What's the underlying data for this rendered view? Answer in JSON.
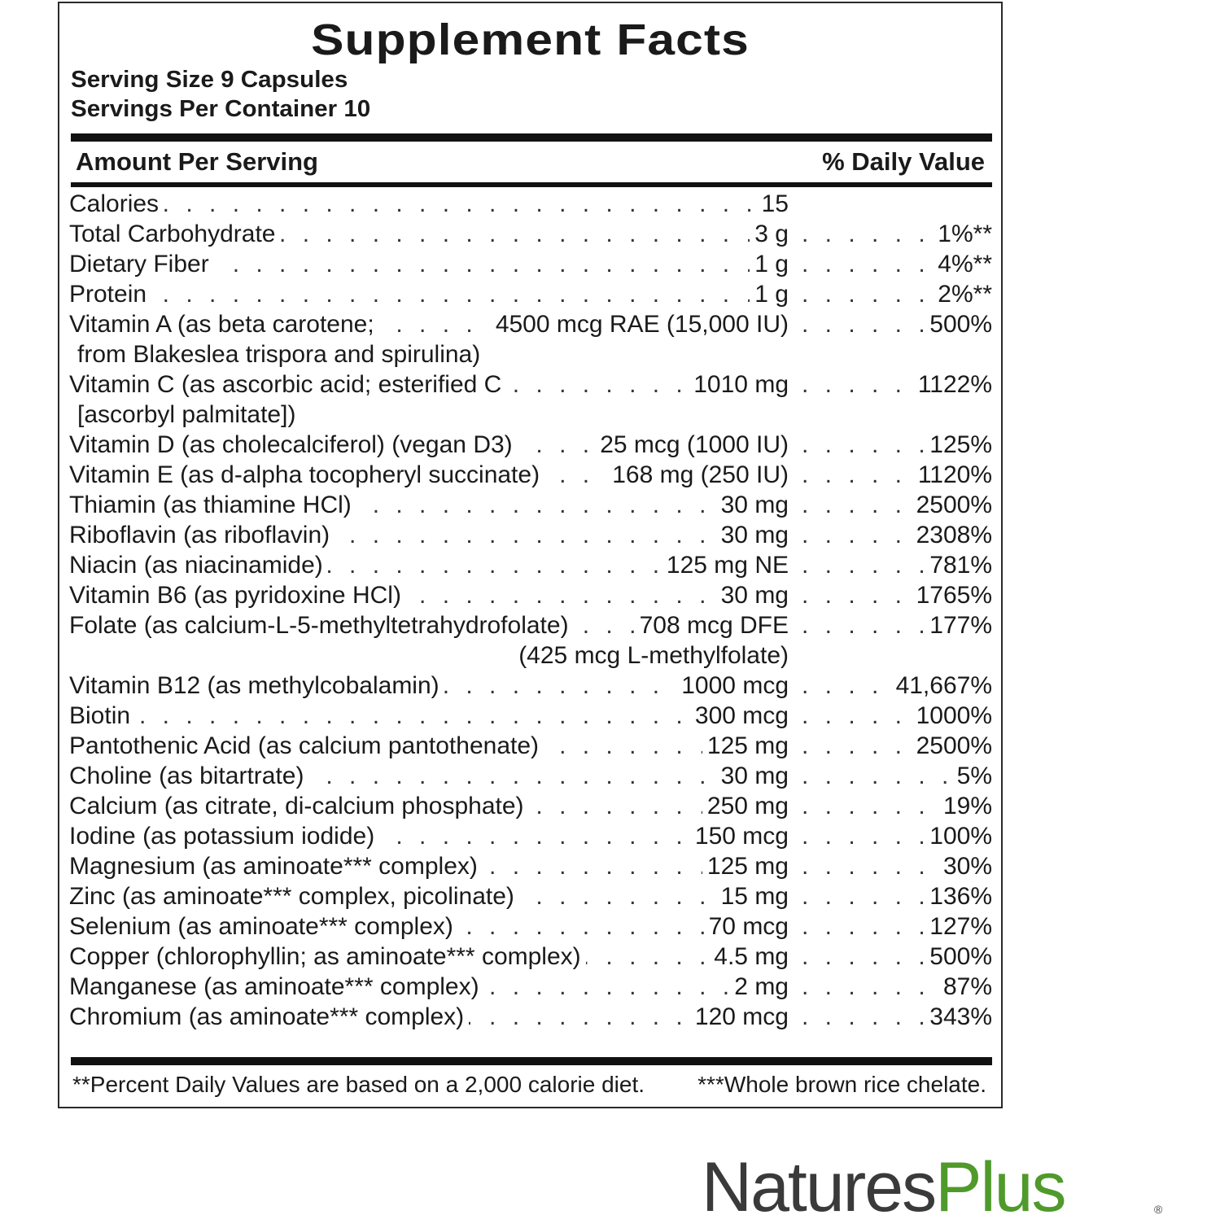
{
  "title": "Supplement Facts",
  "serving_size": "Serving Size 9 Capsules",
  "servings_per_container": "Servings Per Container 10",
  "header": {
    "amount": "Amount Per Serving",
    "dv": "% Daily Value"
  },
  "rows": [
    {
      "name": "Calories",
      "amount": "15",
      "dv": ""
    },
    {
      "name": "Total Carbohydrate",
      "amount": "3 g",
      "dv": "1%**"
    },
    {
      "name": "Dietary Fiber",
      "amount": "1 g",
      "dv": "4%**"
    },
    {
      "name": "Protein",
      "amount": "1 g",
      "dv": "2%**"
    },
    {
      "name": "Vitamin A (as beta carotene;",
      "amount": "4500 mcg RAE (15,000 IU)",
      "dv": "500%",
      "cont": "from Blakeslea trispora and spirulina)"
    },
    {
      "name": "Vitamin C (as ascorbic acid; esterified C",
      "amount": "1010 mg",
      "dv": "1122%",
      "cont": "[ascorbyl palmitate])"
    },
    {
      "name": "Vitamin D (as cholecalciferol) (vegan D3)",
      "amount": "25 mcg (1000 IU)",
      "dv": "125%"
    },
    {
      "name": "Vitamin E (as d-alpha tocopheryl succinate)",
      "amount": "168 mg (250 IU)",
      "dv": "1120%"
    },
    {
      "name": "Thiamin (as thiamine HCl)",
      "amount": "30 mg",
      "dv": "2500%"
    },
    {
      "name": "Riboflavin (as riboflavin)",
      "amount": "30 mg",
      "dv": "2308%"
    },
    {
      "name": "Niacin (as niacinamide)",
      "amount": "125 mg NE",
      "dv": "781%"
    },
    {
      "name": "Vitamin B6 (as pyridoxine HCl)",
      "amount": "30 mg",
      "dv": "1765%"
    },
    {
      "name": "Folate (as calcium-L-5-methyltetrahydrofolate)",
      "amount": "708 mcg DFE",
      "dv": "177%",
      "cont_amount": "(425 mcg L-methylfolate)"
    },
    {
      "name": "Vitamin B12 (as methylcobalamin)",
      "amount": "1000 mcg",
      "dv": "41,667%"
    },
    {
      "name": "Biotin",
      "amount": "300 mcg",
      "dv": "1000%"
    },
    {
      "name": "Pantothenic Acid (as calcium pantothenate)",
      "amount": "125 mg",
      "dv": "2500%"
    },
    {
      "name": "Choline (as bitartrate)",
      "amount": "30 mg",
      "dv": "5%"
    },
    {
      "name": "Calcium (as citrate, di-calcium phosphate)",
      "amount": "250 mg",
      "dv": "19%"
    },
    {
      "name": "Iodine (as potassium iodide)",
      "amount": "150 mcg",
      "dv": "100%"
    },
    {
      "name": "Magnesium (as aminoate*** complex)",
      "amount": "125 mg",
      "dv": "30%"
    },
    {
      "name": "Zinc (as aminoate*** complex, picolinate)",
      "amount": "15 mg",
      "dv": "136%"
    },
    {
      "name": "Selenium (as aminoate*** complex)",
      "amount": "70 mcg",
      "dv": "127%"
    },
    {
      "name": "Copper (chlorophyllin; as aminoate*** complex)",
      "amount": "4.5 mg",
      "dv": "500%"
    },
    {
      "name": "Manganese (as aminoate*** complex)",
      "amount": "2 mg",
      "dv": "87%"
    },
    {
      "name": "Chromium (as aminoate*** complex)",
      "amount": "120 mcg",
      "dv": "343%"
    }
  ],
  "footnotes": {
    "dv_note": "**Percent Daily Values are based on a 2,000 calorie diet.",
    "chelate_note": "***Whole brown rice chelate."
  },
  "brand": {
    "name_part1": "Natures",
    "name_part2": "Plus",
    "registered": "®",
    "accent_color": "#4f9a2b"
  }
}
